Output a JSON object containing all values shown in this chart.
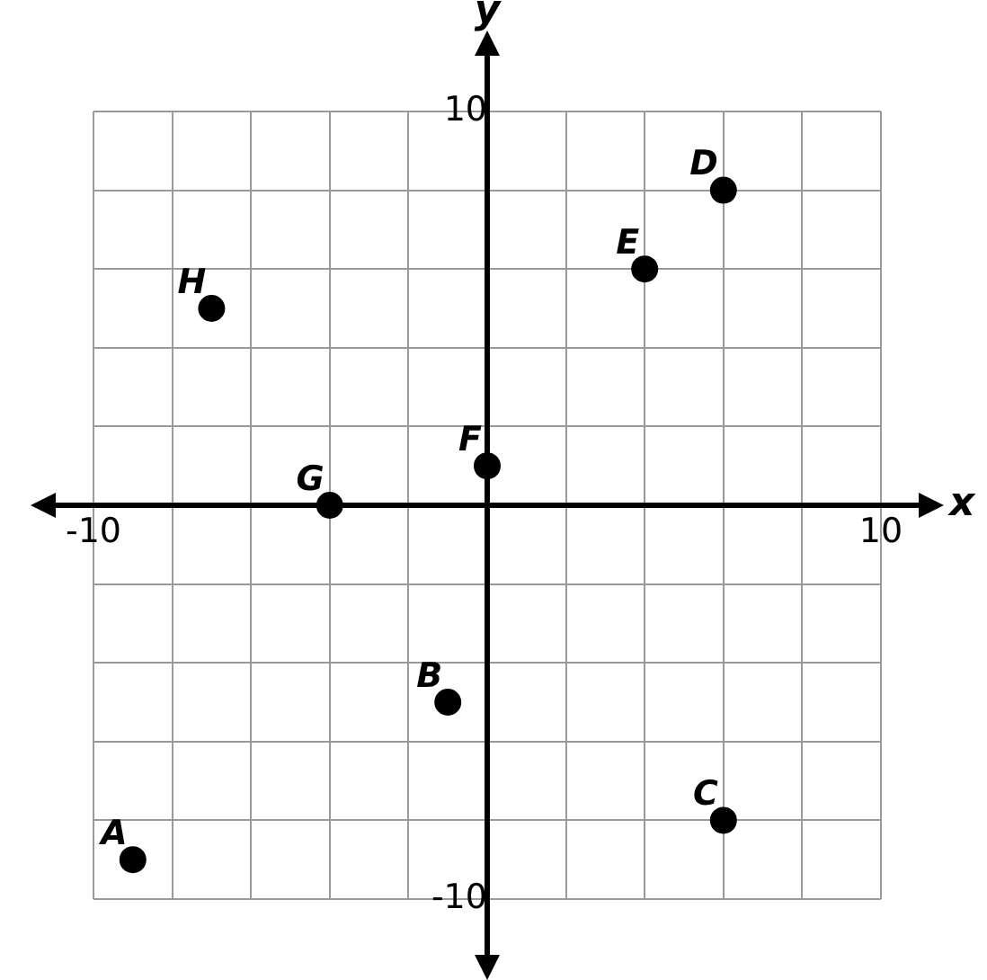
{
  "chart_data": {
    "type": "scatter",
    "xlabel": "x",
    "ylabel": "y",
    "x": [
      -9,
      -1,
      6,
      6,
      4,
      0,
      -4,
      -7
    ],
    "values": [
      -9,
      -5,
      -8,
      8,
      6,
      1,
      0,
      5
    ],
    "color": "#000000",
    "marker": "circle",
    "grid": true,
    "xlim": [
      -10,
      10
    ],
    "ylim": [
      -10,
      10
    ],
    "xticks": [
      -10,
      {
        "value": -8,
        "label": null
      },
      {
        "value": -6,
        "label": null
      },
      {
        "value": -4,
        "label": null
      },
      {
        "value": -2,
        "label": null
      },
      {
        "value": 0,
        "label": null
      },
      {
        "value": 2,
        "label": null
      },
      {
        "value": 4,
        "label": null
      },
      {
        "value": 6,
        "label": null
      },
      {
        "value": 8,
        "label": null
      },
      10
    ],
    "yticks": [
      -10,
      {
        "value": -8,
        "label": null
      },
      {
        "value": -6,
        "label": null
      },
      {
        "value": -4,
        "label": null
      },
      {
        "value": -2,
        "label": null
      },
      {
        "value": 0,
        "label": null
      },
      {
        "value": 2,
        "label": null
      },
      {
        "value": 4,
        "label": null
      },
      {
        "value": 6,
        "label": null
      },
      {
        "value": 8,
        "label": null
      },
      10
    ],
    "annotations": [
      {
        "text": "A",
        "x": -9,
        "y": -9
      },
      {
        "text": "B",
        "x": -1,
        "y": -5
      },
      {
        "text": "C",
        "x": 6,
        "y": -8
      },
      {
        "text": "D",
        "x": 6,
        "y": 8
      },
      {
        "text": "E",
        "x": 4,
        "y": 6
      },
      {
        "text": "F",
        "x": 0,
        "y": 1
      },
      {
        "text": "G",
        "x": -4,
        "y": 0
      },
      {
        "text": "H",
        "x": -7,
        "y": 5
      }
    ]
  }
}
